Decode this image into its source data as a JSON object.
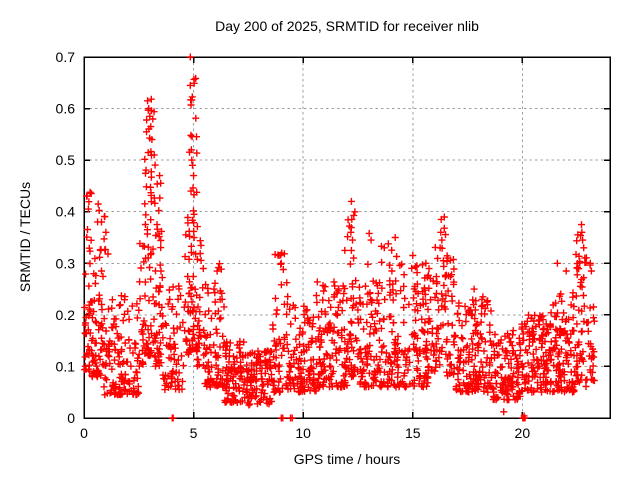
{
  "chart_data": {
    "type": "scatter",
    "title": "Day 200 of 2025, SRMTID for receiver nlib",
    "xlabel": "GPS time / hours",
    "ylabel": "SRMTID / TECUs",
    "xlim": [
      0,
      24
    ],
    "ylim": [
      0,
      0.7
    ],
    "xticks": [
      "0",
      "5",
      "10",
      "15",
      "20"
    ],
    "yticks": [
      "0",
      "0.1",
      "0.2",
      "0.3",
      "0.4",
      "0.5",
      "0.6",
      "0.7"
    ],
    "grid": true,
    "legend": false,
    "marker": {
      "shape": "plus",
      "color": "#ff0000",
      "size": 7
    },
    "colors": {
      "marker": "#ff0000",
      "grid": "#9e9e9e",
      "border": "#000000",
      "background": "#ffffff",
      "text": "#000000"
    },
    "seed": 421997,
    "distribution_segments": [
      {
        "x0": 0.02,
        "x1": 0.35,
        "n": 42,
        "ylo": 0.09,
        "yhi": 0.44,
        "skew": 1.3
      },
      {
        "x0": 0.35,
        "x1": 0.9,
        "n": 55,
        "ylo": 0.08,
        "yhi": 0.33,
        "skew": 1.8
      },
      {
        "x0": 0.6,
        "x1": 1.1,
        "n": 8,
        "ylo": 0.3,
        "yhi": 0.42,
        "skew": 1.0
      },
      {
        "x0": 0.9,
        "x1": 2.5,
        "n": 130,
        "ylo": 0.045,
        "yhi": 0.24,
        "skew": 1.6
      },
      {
        "x0": 2.5,
        "x1": 2.75,
        "n": 20,
        "ylo": 0.1,
        "yhi": 0.35,
        "skew": 1.4
      },
      {
        "x0": 2.75,
        "x1": 3.25,
        "n": 70,
        "ylo": 0.12,
        "yhi": 0.62,
        "skew": 1.7
      },
      {
        "x0": 3.25,
        "x1": 3.6,
        "n": 45,
        "ylo": 0.1,
        "yhi": 0.47,
        "skew": 1.6
      },
      {
        "x0": 3.6,
        "x1": 4.6,
        "n": 65,
        "ylo": 0.055,
        "yhi": 0.27,
        "skew": 1.7
      },
      {
        "x0": 4.6,
        "x1": 4.8,
        "n": 18,
        "ylo": 0.12,
        "yhi": 0.42,
        "skew": 1.4
      },
      {
        "x0": 4.8,
        "x1": 5.15,
        "n": 60,
        "ylo": 0.13,
        "yhi": 0.7,
        "skew": 1.6
      },
      {
        "x0": 5.15,
        "x1": 5.5,
        "n": 30,
        "ylo": 0.1,
        "yhi": 0.38,
        "skew": 1.6
      },
      {
        "x0": 5.5,
        "x1": 6.4,
        "n": 80,
        "ylo": 0.06,
        "yhi": 0.3,
        "skew": 2.0
      },
      {
        "x0": 6.4,
        "x1": 7.3,
        "n": 85,
        "ylo": 0.03,
        "yhi": 0.15,
        "skew": 1.4
      },
      {
        "x0": 7.3,
        "x1": 8.6,
        "n": 110,
        "ylo": 0.025,
        "yhi": 0.13,
        "skew": 1.2
      },
      {
        "x0": 8.6,
        "x1": 9.3,
        "n": 55,
        "ylo": 0.05,
        "yhi": 0.32,
        "skew": 1.9
      },
      {
        "x0": 9.3,
        "x1": 10.6,
        "n": 110,
        "ylo": 0.05,
        "yhi": 0.22,
        "skew": 1.6
      },
      {
        "x0": 10.6,
        "x1": 12.0,
        "n": 130,
        "ylo": 0.06,
        "yhi": 0.27,
        "skew": 1.7
      },
      {
        "x0": 12.0,
        "x1": 12.45,
        "n": 40,
        "ylo": 0.08,
        "yhi": 0.42,
        "skew": 1.8
      },
      {
        "x0": 12.45,
        "x1": 14.5,
        "n": 170,
        "ylo": 0.06,
        "yhi": 0.3,
        "skew": 1.7
      },
      {
        "x0": 13.0,
        "x1": 14.4,
        "n": 6,
        "ylo": 0.3,
        "yhi": 0.36,
        "skew": 1.0
      },
      {
        "x0": 14.5,
        "x1": 15.9,
        "n": 120,
        "ylo": 0.06,
        "yhi": 0.3,
        "skew": 1.6
      },
      {
        "x0": 15.9,
        "x1": 16.5,
        "n": 45,
        "ylo": 0.09,
        "yhi": 0.39,
        "skew": 1.5
      },
      {
        "x0": 16.5,
        "x1": 16.9,
        "n": 35,
        "ylo": 0.08,
        "yhi": 0.32,
        "skew": 1.5
      },
      {
        "x0": 16.9,
        "x1": 18.6,
        "n": 150,
        "ylo": 0.05,
        "yhi": 0.23,
        "skew": 1.6
      },
      {
        "x0": 18.6,
        "x1": 19.9,
        "n": 120,
        "ylo": 0.035,
        "yhi": 0.17,
        "skew": 1.4
      },
      {
        "x0": 19.9,
        "x1": 21.3,
        "n": 130,
        "ylo": 0.05,
        "yhi": 0.2,
        "skew": 1.5
      },
      {
        "x0": 21.3,
        "x1": 22.4,
        "n": 110,
        "ylo": 0.05,
        "yhi": 0.25,
        "skew": 1.7
      },
      {
        "x0": 22.4,
        "x1": 23.0,
        "n": 55,
        "ylo": 0.06,
        "yhi": 0.37,
        "skew": 1.4
      },
      {
        "x0": 23.0,
        "x1": 23.3,
        "n": 25,
        "ylo": 0.07,
        "yhi": 0.3,
        "skew": 1.3
      }
    ],
    "points_explicit": [
      [
        0.12,
        0.43
      ],
      [
        0.2,
        0.405
      ],
      [
        0.65,
        0.415
      ],
      [
        0.8,
        0.38
      ],
      [
        1.0,
        0.36
      ],
      [
        2.9,
        0.615
      ],
      [
        2.95,
        0.6
      ],
      [
        3.0,
        0.585
      ],
      [
        3.05,
        0.565
      ],
      [
        2.85,
        0.555
      ],
      [
        3.1,
        0.54
      ],
      [
        3.45,
        0.47
      ],
      [
        3.5,
        0.455
      ],
      [
        4.85,
        0.7
      ],
      [
        4.85,
        0.645
      ],
      [
        4.87,
        0.617
      ],
      [
        4.9,
        0.52
      ],
      [
        4.92,
        0.5
      ],
      [
        4.95,
        0.49
      ],
      [
        5.0,
        0.47
      ],
      [
        4.88,
        0.44
      ],
      [
        8.9,
        0.315
      ],
      [
        9.0,
        0.3
      ],
      [
        11.9,
        0.325
      ],
      [
        12.2,
        0.42
      ],
      [
        12.22,
        0.385
      ],
      [
        12.18,
        0.36
      ],
      [
        12.25,
        0.345
      ],
      [
        12.2,
        0.325
      ],
      [
        12.3,
        0.31
      ],
      [
        13.1,
        0.345
      ],
      [
        13.7,
        0.33
      ],
      [
        14.2,
        0.35
      ],
      [
        15.0,
        0.315
      ],
      [
        15.6,
        0.3
      ],
      [
        16.3,
        0.385
      ],
      [
        16.28,
        0.36
      ],
      [
        16.33,
        0.345
      ],
      [
        16.25,
        0.33
      ],
      [
        16.4,
        0.305
      ],
      [
        16.6,
        0.31
      ],
      [
        17.8,
        0.25
      ],
      [
        18.2,
        0.235
      ],
      [
        21.6,
        0.3
      ],
      [
        22.0,
        0.285
      ],
      [
        22.7,
        0.375
      ],
      [
        22.72,
        0.36
      ],
      [
        22.75,
        0.345
      ],
      [
        22.8,
        0.33
      ],
      [
        22.85,
        0.31
      ],
      [
        23.1,
        0.3
      ],
      [
        23.15,
        0.285
      ],
      [
        19.15,
        0.012
      ],
      [
        4.03,
        0.0
      ],
      [
        4.07,
        0.0
      ],
      [
        9.0,
        0.0
      ],
      [
        9.07,
        0.0
      ],
      [
        9.42,
        0.0
      ],
      [
        9.5,
        0.0
      ],
      [
        20.02,
        0.0
      ],
      [
        20.07,
        0.0
      ],
      [
        20.12,
        0.0
      ],
      [
        20.08,
        0.004
      ]
    ]
  }
}
